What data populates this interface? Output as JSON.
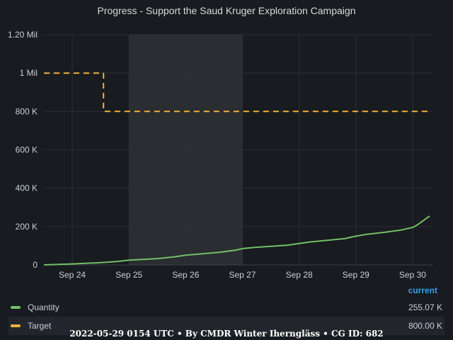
{
  "panel": {
    "title": "Progress - Support the Saud Kruger Exploration Campaign"
  },
  "legend": {
    "header": "current",
    "items": [
      {
        "name": "Quantity",
        "value": "255.07 K",
        "color": "#73bf69"
      },
      {
        "name": "Target",
        "value": "800.00 K",
        "color": "#f2b136"
      }
    ]
  },
  "footer": {
    "text": "2022-05-29 0154 UTC • By CMDR Winter Iherngläss • CG ID: 682"
  },
  "chart_data": {
    "type": "line",
    "x_axis": {
      "ticks": [
        "Sep 24",
        "Sep 25",
        "Sep 26",
        "Sep 27",
        "Sep 28",
        "Sep 29",
        "Sep 30"
      ],
      "range_days": [
        23.5,
        30.35
      ]
    },
    "y_axis": {
      "ticks": [
        {
          "value": 0,
          "label": "0"
        },
        {
          "value": 200000,
          "label": "200 K"
        },
        {
          "value": 400000,
          "label": "400 K"
        },
        {
          "value": 600000,
          "label": "600 K"
        },
        {
          "value": 800000,
          "label": "800 K"
        },
        {
          "value": 1000000,
          "label": "1 Mil"
        },
        {
          "value": 1200000,
          "label": "1.20 Mil"
        }
      ],
      "range": [
        0,
        1200000
      ]
    },
    "highlight_region": [
      25.0,
      27.0
    ],
    "grid": true,
    "series": [
      {
        "name": "Quantity",
        "color": "#73bf69",
        "style": "solid",
        "points": [
          [
            23.5,
            0
          ],
          [
            24.0,
            5000
          ],
          [
            24.5,
            12000
          ],
          [
            24.8,
            18000
          ],
          [
            25.0,
            25000
          ],
          [
            25.5,
            33000
          ],
          [
            25.8,
            42000
          ],
          [
            26.0,
            51000
          ],
          [
            26.3,
            58000
          ],
          [
            26.6,
            66000
          ],
          [
            26.9,
            78000
          ],
          [
            27.0,
            85000
          ],
          [
            27.2,
            91000
          ],
          [
            27.5,
            97000
          ],
          [
            27.8,
            103000
          ],
          [
            28.0,
            112000
          ],
          [
            28.2,
            120000
          ],
          [
            28.5,
            128000
          ],
          [
            28.8,
            137000
          ],
          [
            29.0,
            150000
          ],
          [
            29.2,
            160000
          ],
          [
            29.5,
            170000
          ],
          [
            29.8,
            182000
          ],
          [
            30.0,
            195000
          ],
          [
            30.1,
            212000
          ],
          [
            30.3,
            255070
          ]
        ]
      },
      {
        "name": "Target",
        "color": "#f2b136",
        "style": "dashed",
        "points": [
          [
            23.5,
            1000000
          ],
          [
            24.55,
            1000000
          ],
          [
            24.55,
            800000
          ],
          [
            30.3,
            800000
          ]
        ]
      }
    ]
  }
}
